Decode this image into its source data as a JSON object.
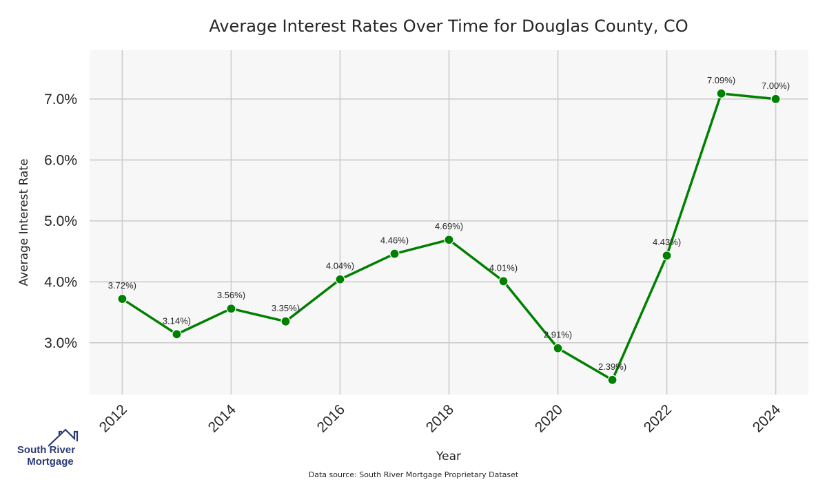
{
  "chart_data": {
    "type": "line",
    "title": "Average Interest Rates Over Time for Douglas County, CO",
    "xlabel": "Year",
    "ylabel": "Average Interest Rate",
    "x": [
      2012,
      2013,
      2014,
      2015,
      2016,
      2017,
      2018,
      2019,
      2020,
      2021,
      2022,
      2023,
      2024
    ],
    "values": [
      3.72,
      3.14,
      3.56,
      3.35,
      4.04,
      4.46,
      4.69,
      4.01,
      2.91,
      2.39,
      4.43,
      7.09,
      7.0
    ],
    "point_labels": [
      "3.72%)",
      "3.14%)",
      "3.56%)",
      "3.35%)",
      "4.04%)",
      "4.46%)",
      "4.69%)",
      "4.01%)",
      "2.91%)",
      "2.39%)",
      "4.43%)",
      "7.09%)",
      "7.00%)"
    ],
    "x_ticks": [
      "2012",
      "2014",
      "2016",
      "2018",
      "2020",
      "2022",
      "2024"
    ],
    "y_ticks": [
      {
        "value": 3,
        "label": "3.0%"
      },
      {
        "value": 4,
        "label": "4.0%"
      },
      {
        "value": 5,
        "label": "5.0%"
      },
      {
        "value": 6,
        "label": "6.0%"
      },
      {
        "value": 7,
        "label": "7.0%"
      }
    ],
    "xlim": [
      2011.4,
      2024.6
    ],
    "ylim": [
      2.15,
      7.8
    ],
    "grid": true,
    "line_color": "#008000",
    "background_color": "#f7f7f7",
    "grid_color": "#cccccc"
  },
  "source_note": "Data source: South River Mortgage Proprietary Dataset",
  "logo": {
    "line1": "South River",
    "line2": "Mortgage",
    "icon": "house-roof-icon",
    "color": "#2b3a77"
  }
}
